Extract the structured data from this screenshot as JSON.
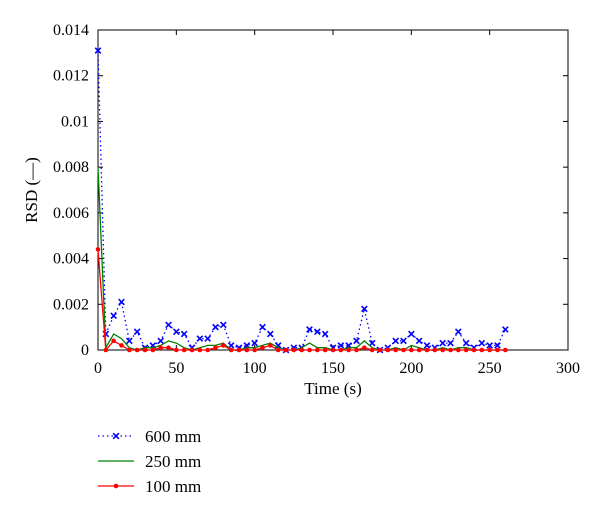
{
  "chart_data": {
    "type": "line",
    "xlabel": "Time (s)",
    "ylabel": "RSD (—)",
    "xlim": [
      0,
      300
    ],
    "ylim": [
      0,
      0.014
    ],
    "xticks": [
      0,
      50,
      100,
      150,
      200,
      250,
      300
    ],
    "yticks": [
      0,
      0.002,
      0.004,
      0.006,
      0.008,
      0.01,
      0.012,
      0.014
    ],
    "xtick_labels": [
      "0",
      "50",
      "100",
      "150",
      "200",
      "250",
      "300"
    ],
    "ytick_labels": [
      "0",
      "0.002",
      "0.004",
      "0.006",
      "0.008",
      "0.01",
      "0.012",
      "0.014"
    ],
    "grid": false,
    "legend_position": "below-left",
    "x": [
      0,
      5,
      10,
      15,
      20,
      25,
      30,
      35,
      40,
      45,
      50,
      55,
      60,
      65,
      70,
      75,
      80,
      85,
      90,
      95,
      100,
      105,
      110,
      115,
      120,
      125,
      130,
      135,
      140,
      145,
      150,
      155,
      160,
      165,
      170,
      175,
      180,
      185,
      190,
      195,
      200,
      205,
      210,
      215,
      220,
      225,
      230,
      235,
      240,
      245,
      250,
      255,
      260
    ],
    "series": [
      {
        "name": "600 mm",
        "color": "#0000ff",
        "style": "dotted",
        "marker": "x",
        "values": [
          0.0131,
          0.0007,
          0.0015,
          0.0021,
          0.0004,
          0.0008,
          0.0001,
          0.0002,
          0.0004,
          0.0011,
          0.0008,
          0.0007,
          0.0001,
          0.0005,
          0.0005,
          0.001,
          0.0011,
          0.0002,
          0.0001,
          0.0002,
          0.0003,
          0.001,
          0.0007,
          0.0002,
          0.0,
          0.0001,
          0.0001,
          0.0009,
          0.0008,
          0.0007,
          0.0001,
          0.0002,
          0.0002,
          0.0004,
          0.0018,
          0.0003,
          0.0,
          0.0001,
          0.0004,
          0.0004,
          0.0007,
          0.0004,
          0.0002,
          0.0001,
          0.0003,
          0.0003,
          0.0008,
          0.0003,
          0.0001,
          0.0003,
          0.0002,
          0.0002,
          0.0009
        ]
      },
      {
        "name": "250 mm",
        "color": "#008000",
        "style": "solid",
        "marker": "none",
        "values": [
          0.008,
          0.0001,
          0.0007,
          0.0005,
          0.0001,
          0.0,
          0.0001,
          0.0001,
          0.0002,
          0.0004,
          0.0003,
          0.0001,
          0.0,
          0.0001,
          0.0002,
          0.0002,
          0.0003,
          0.0,
          0.0,
          0.0001,
          0.0001,
          0.0002,
          0.0003,
          0.0001,
          0.0,
          0.0,
          0.0001,
          0.0003,
          0.0001,
          0.0001,
          0.0,
          0.0,
          0.0001,
          0.0001,
          0.0004,
          0.0001,
          0.0,
          0.0,
          0.0001,
          0.0,
          0.0002,
          0.0001,
          0.0,
          0.0,
          0.0001,
          0.0,
          0.0001,
          0.0001,
          0.0,
          0.0,
          0.0,
          0.0,
          0.0
        ]
      },
      {
        "name": "100 mm",
        "color": "#ff0000",
        "style": "solid",
        "marker": "dot",
        "values": [
          0.0044,
          0.0,
          0.0004,
          0.0002,
          0.0,
          0.0,
          0.0,
          0.0,
          0.0001,
          0.0001,
          0.0,
          0.0,
          0.0,
          0.0,
          0.0,
          0.0001,
          0.0002,
          0.0,
          0.0,
          0.0,
          0.0,
          0.0001,
          0.0002,
          0.0,
          0.0,
          0.0,
          0.0,
          0.0,
          0.0,
          0.0,
          0.0,
          0.0,
          0.0,
          0.0,
          0.0001,
          0.0,
          0.0,
          0.0,
          0.0,
          0.0,
          0.0,
          0.0,
          0.0,
          0.0,
          0.0,
          0.0,
          0.0,
          0.0,
          0.0,
          0.0,
          0.0,
          0.0,
          0.0
        ]
      }
    ]
  }
}
